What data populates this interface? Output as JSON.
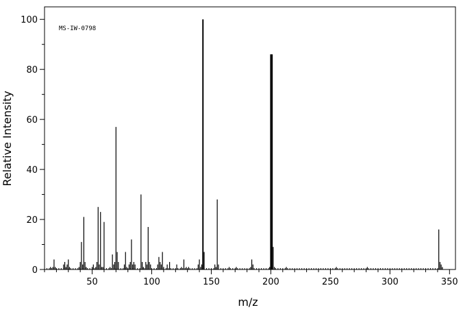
{
  "chart_data": {
    "type": "bar",
    "title": "",
    "annotation": "MS-IW-0798",
    "xlabel": "m/z",
    "ylabel": "Relative Intensity",
    "xlim": [
      10,
      355
    ],
    "ylim": [
      0,
      105
    ],
    "xticks": [
      50,
      100,
      150,
      200,
      250,
      300,
      350
    ],
    "yticks": [
      0,
      20,
      40,
      60,
      80,
      100
    ],
    "grid": false,
    "x": [
      15,
      17,
      18,
      19,
      26,
      27,
      28,
      29,
      30,
      31,
      39,
      40,
      41,
      42,
      43,
      44,
      45,
      50,
      51,
      53,
      54,
      55,
      56,
      57,
      58,
      59,
      60,
      65,
      67,
      68,
      69,
      70,
      71,
      72,
      77,
      78,
      79,
      81,
      82,
      83,
      84,
      85,
      86,
      91,
      92,
      93,
      95,
      96,
      97,
      98,
      99,
      105,
      106,
      107,
      108,
      109,
      110,
      113,
      115,
      121,
      125,
      127,
      129,
      131,
      139,
      140,
      141,
      142,
      143,
      144,
      153,
      154,
      155,
      156,
      165,
      171,
      183,
      184,
      185,
      199,
      200,
      201,
      202,
      203,
      213,
      255,
      281,
      341,
      342,
      343,
      344
    ],
    "y": [
      1,
      1,
      4,
      1,
      2,
      3,
      1,
      2,
      4,
      1,
      1,
      3,
      11,
      2,
      21,
      3,
      1,
      1,
      2,
      1,
      3,
      25,
      2,
      23,
      1,
      1,
      19,
      1,
      6,
      2,
      3,
      57,
      7,
      3,
      2,
      7,
      1,
      2,
      3,
      12,
      2,
      3,
      2,
      30,
      3,
      1,
      3,
      2,
      17,
      3,
      2,
      2,
      5,
      3,
      2,
      7,
      1,
      2,
      3,
      2,
      1,
      4,
      1,
      1,
      2,
      4,
      1,
      2,
      100,
      7,
      2,
      1,
      28,
      2,
      1,
      1,
      1,
      4,
      2,
      1,
      86,
      86,
      9,
      1,
      1,
      1,
      1,
      16,
      3,
      2,
      1
    ]
  }
}
